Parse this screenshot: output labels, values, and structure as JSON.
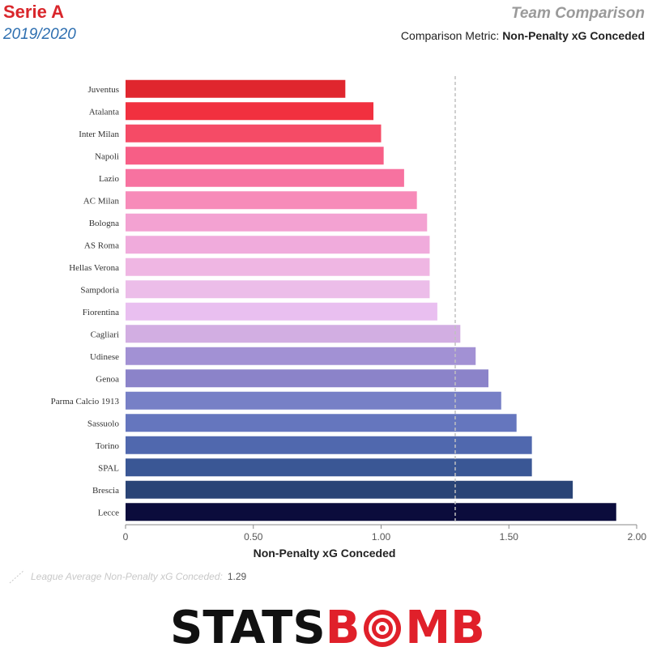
{
  "header": {
    "league": "Serie A",
    "season": "2019/2020",
    "title": "Team Comparison",
    "metric_prefix": "Comparison Metric:",
    "metric_value": "Non-Penalty xG Conceded"
  },
  "legend": {
    "average_label": "League Average Non-Penalty xG Conceded:",
    "average_value": "1.29"
  },
  "logo": {
    "text_black": "STATS",
    "text_red_a": "B",
    "text_red_b": "MB"
  },
  "colors": {
    "league": "#d9262b",
    "season": "#2e6fb0",
    "logo_red": "#e0202a"
  },
  "chart_data": {
    "type": "bar",
    "orientation": "horizontal",
    "title": "",
    "xlabel": "Non-Penalty xG Conceded",
    "ylabel": "",
    "xlim": [
      0,
      2.0
    ],
    "xticks": [
      "0",
      "0.50",
      "1.00",
      "1.50",
      "2.00"
    ],
    "xtick_values": [
      0,
      0.5,
      1.0,
      1.5,
      2.0
    ],
    "grid": false,
    "reference_line": {
      "value": 1.29,
      "style": "dashed"
    },
    "categories": [
      "Juventus",
      "Atalanta",
      "Inter Milan",
      "Napoli",
      "Lazio",
      "AC Milan",
      "Bologna",
      "AS Roma",
      "Hellas Verona",
      "Sampdoria",
      "Fiorentina",
      "Cagliari",
      "Udinese",
      "Genoa",
      "Parma Calcio 1913",
      "Sassuolo",
      "Torino",
      "SPAL",
      "Brescia",
      "Lecce"
    ],
    "values": [
      0.86,
      0.97,
      1.0,
      1.01,
      1.09,
      1.14,
      1.18,
      1.19,
      1.19,
      1.19,
      1.22,
      1.31,
      1.37,
      1.42,
      1.47,
      1.53,
      1.59,
      1.59,
      1.75,
      1.92
    ],
    "bar_colors": [
      "#e0262e",
      "#f1303f",
      "#f54b66",
      "#f75e86",
      "#f772a0",
      "#f78bb9",
      "#f3a2d2",
      "#f0abdc",
      "#efb6e3",
      "#ecbde9",
      "#e9bff0",
      "#d2aee2",
      "#a291d4",
      "#8b83c9",
      "#7780c6",
      "#6576be",
      "#5068ae",
      "#3a5795",
      "#2a4476",
      "#0b0c3c"
    ]
  }
}
